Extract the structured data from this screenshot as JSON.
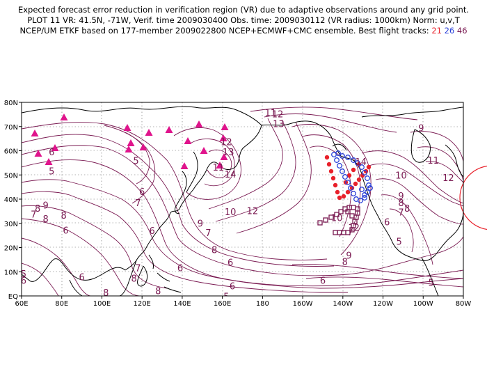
{
  "header": {
    "line1": "Expected forecast error reduction in verification region (VR) due to adaptive observations around any grid point.",
    "line2": "PLOT 11 VR: 41.5N, -71W, Verif. time 2009030400 Obs. time: 2009030112 (VR radius: 1000km) Norm: u,v,T",
    "line3_prefix": "NCEP/UM ETKF based on 177-member 2009022800 NCEP+ECMWF+CMC ensemble. Best flight tracks: ",
    "track_a": "21",
    "track_b": "26",
    "track_c": "46"
  },
  "map": {
    "lat_ticks": [
      "EQ",
      "10N",
      "20N",
      "30N",
      "40N",
      "50N",
      "60N",
      "70N",
      "80N"
    ],
    "lon_ticks": [
      "60E",
      "80E",
      "100E",
      "120E",
      "140E",
      "160E",
      "180",
      "160W",
      "140W",
      "120W",
      "100W",
      "80W"
    ],
    "contour_labels": [
      {
        "t": "11",
        "lon": 184,
        "lat": 75.8
      },
      {
        "t": "12",
        "lon": 187.5,
        "lat": 75.3
      },
      {
        "t": "13",
        "lon": 188,
        "lat": 71.2
      },
      {
        "t": "9",
        "lon": 259,
        "lat": 69.5
      },
      {
        "t": "5",
        "lon": 75,
        "lat": 51.6
      },
      {
        "t": "6",
        "lon": 75,
        "lat": 59.6
      },
      {
        "t": "5",
        "lon": 117,
        "lat": 56
      },
      {
        "t": "6",
        "lon": 120,
        "lat": 43.1
      },
      {
        "t": "7",
        "lon": 118,
        "lat": 38.6
      },
      {
        "t": "12",
        "lon": 162,
        "lat": 63.7
      },
      {
        "t": "13",
        "lon": 163,
        "lat": 59.6
      },
      {
        "t": "14",
        "lon": 164,
        "lat": 50.4
      },
      {
        "t": "11",
        "lon": 158,
        "lat": 53.3
      },
      {
        "t": "10",
        "lon": 164,
        "lat": 34.8
      },
      {
        "t": "12",
        "lon": 175,
        "lat": 35.3
      },
      {
        "t": "9",
        "lon": 149,
        "lat": 30.1
      },
      {
        "t": "7",
        "lon": 153,
        "lat": 26.2
      },
      {
        "t": "8",
        "lon": 156,
        "lat": 19.1
      },
      {
        "t": "8",
        "lon": 72,
        "lat": 31.9
      },
      {
        "t": "7",
        "lon": 66,
        "lat": 33.8
      },
      {
        "t": "8",
        "lon": 81,
        "lat": 33.4
      },
      {
        "t": "8",
        "lon": 68,
        "lat": 36.2
      },
      {
        "t": "9",
        "lon": 72,
        "lat": 37.6
      },
      {
        "t": "6",
        "lon": 82,
        "lat": 27.2
      },
      {
        "t": "5",
        "lon": 61,
        "lat": 9.2
      },
      {
        "t": "6",
        "lon": 61,
        "lat": 6.5
      },
      {
        "t": "6",
        "lon": 90,
        "lat": 7.9
      },
      {
        "t": "8",
        "lon": 102,
        "lat": 1.5
      },
      {
        "t": "8",
        "lon": 116,
        "lat": 7.4
      },
      {
        "t": "7",
        "lon": 118,
        "lat": 11.7
      },
      {
        "t": "6",
        "lon": 125,
        "lat": 27
      },
      {
        "t": "6",
        "lon": 139,
        "lat": 11.6
      },
      {
        "t": "8",
        "lon": 128,
        "lat": 2.1
      },
      {
        "t": "6",
        "lon": 164,
        "lat": 14
      },
      {
        "t": "6",
        "lon": 165,
        "lat": 4.2
      },
      {
        "t": "5",
        "lon": 162,
        "lat": -0.2
      },
      {
        "t": "9",
        "lon": 223,
        "lat": 16.9
      },
      {
        "t": "8",
        "lon": 221,
        "lat": 14.3
      },
      {
        "t": "6",
        "lon": 210,
        "lat": 6.5
      },
      {
        "t": "5",
        "lon": 264,
        "lat": 5.6
      },
      {
        "t": "5",
        "lon": 248,
        "lat": 22.6
      },
      {
        "t": "6",
        "lon": 242,
        "lat": 30.7
      },
      {
        "t": "7",
        "lon": 249,
        "lat": 34.7
      },
      {
        "t": "8",
        "lon": 252,
        "lat": 36.2
      },
      {
        "t": "8",
        "lon": 249,
        "lat": 38.6
      },
      {
        "t": "9",
        "lon": 249,
        "lat": 41.5
      },
      {
        "t": "10",
        "lon": 249,
        "lat": 49.9
      },
      {
        "t": "11",
        "lon": 265,
        "lat": 56.1
      },
      {
        "t": "12",
        "lon": 272.5,
        "lat": 48.9
      },
      {
        "t": "10",
        "lon": 217,
        "lat": 32.4
      },
      {
        "t": "12",
        "lon": 225.5,
        "lat": 28.3
      },
      {
        "t": "14",
        "lon": 229,
        "lat": 55.5
      }
    ]
  }
}
